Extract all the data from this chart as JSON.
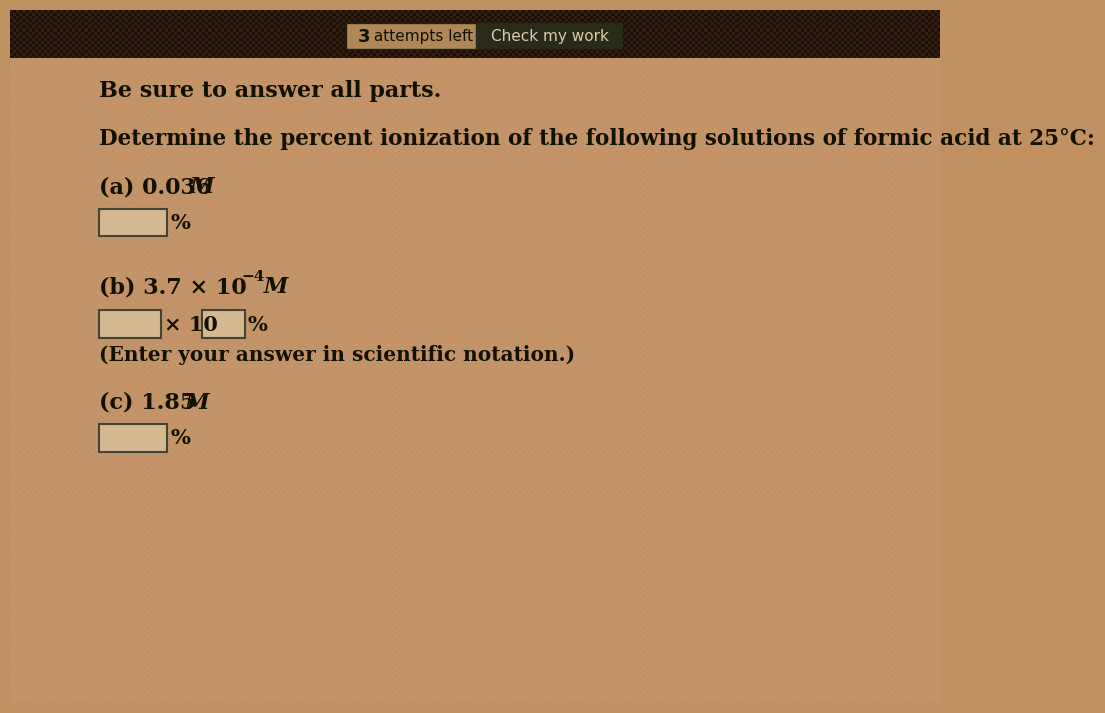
{
  "bg_color": "#c09060",
  "content_bg": "#c8a878",
  "top_section_color": "#2a1a0a",
  "attempts_box_color": "#b89060",
  "attempts_box_border": "#555544",
  "check_btn_color": "#333322",
  "check_btn_text": "Check my work",
  "attempts_text": "3  attempts left",
  "line1": "Be sure to answer all parts.",
  "line2": "Determine the percent ionization of the following solutions of formic acid at 25°C:",
  "part_a_label": "(a) 0.036 ",
  "part_a_M": "M",
  "part_b_prefix": "(b) 3.7 × 10",
  "part_b_exp": "−4",
  "part_b_M": " M",
  "part_b_sci_note": "(Enter your answer in scientific notation.)",
  "part_c_label": "(c) 1.85 ",
  "part_c_M": "M",
  "percent_sign": "%",
  "x10_text": "× 10",
  "input_box_color": "#c8b898",
  "input_box_border": "#444433",
  "text_color": "#111100",
  "header_text_color": "#ccbbaa",
  "fig_width": 12.0,
  "fig_height": 9.0
}
